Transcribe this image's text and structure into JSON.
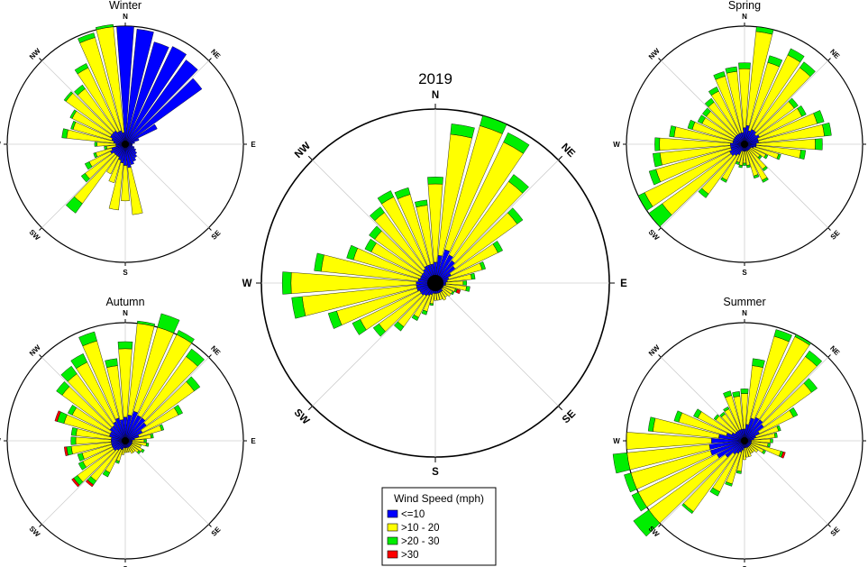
{
  "figure": {
    "panels": [
      {
        "id": "annual",
        "title": "2019",
        "labels": [
          "N",
          "NE",
          "E",
          "SE",
          "S",
          "SW",
          "W",
          "NW"
        ]
      },
      {
        "id": "winter",
        "title": "Winter",
        "labels": [
          "N",
          "NE",
          "E",
          "SE",
          "S",
          "SW",
          "W",
          "NW"
        ]
      },
      {
        "id": "spring",
        "title": "Spring",
        "labels": [
          "N",
          "NE",
          "E",
          "SE",
          "S",
          "SW",
          "W",
          "NW"
        ]
      },
      {
        "id": "autumn",
        "title": "Autumn",
        "labels": [
          "N",
          "NE",
          "E",
          "SE",
          "S",
          "SW",
          "W",
          "NW"
        ]
      },
      {
        "id": "summer",
        "title": "Summer",
        "labels": [
          "N",
          "NE",
          "E",
          "SE",
          "S",
          "SW",
          "W",
          "NW"
        ]
      }
    ],
    "legend": {
      "title": "Wind Speed (mph)",
      "items": [
        {
          "label": "<=10",
          "color": "#0000ff"
        },
        {
          "label": ">10 - 20",
          "color": "#ffff00"
        },
        {
          "label": ">20 - 30",
          "color": "#00ee00"
        },
        {
          "label": ">30",
          "color": "#ff0000"
        }
      ]
    }
  },
  "chart_data": [
    {
      "type": "windrose",
      "panel": "annual",
      "title": "2019",
      "bins": [
        "<=10",
        ">10 - 20",
        ">20 - 30",
        ">30"
      ],
      "colors": [
        "#0000ff",
        "#ffff00",
        "#00ee00",
        "#ff0000"
      ],
      "rmax": 100,
      "directions": [
        0,
        10,
        20,
        30,
        40,
        50,
        60,
        70,
        80,
        90,
        100,
        110,
        120,
        130,
        140,
        150,
        160,
        170,
        180,
        190,
        200,
        210,
        220,
        230,
        240,
        250,
        260,
        270,
        280,
        290,
        300,
        310,
        320,
        330,
        340,
        350
      ],
      "stacked_radius": [
        [
          12,
          45,
          4,
          0
        ],
        [
          16,
          70,
          6,
          0
        ],
        [
          20,
          74,
          8,
          0
        ],
        [
          18,
          72,
          6,
          0
        ],
        [
          16,
          56,
          5,
          0
        ],
        [
          14,
          44,
          4,
          0
        ],
        [
          10,
          30,
          3,
          0
        ],
        [
          8,
          20,
          2,
          0
        ],
        [
          7,
          14,
          2,
          0
        ],
        [
          6,
          10,
          2,
          0
        ],
        [
          6,
          12,
          2,
          0
        ],
        [
          5,
          7,
          1,
          2
        ],
        [
          5,
          6,
          1,
          0
        ],
        [
          5,
          6,
          0,
          0
        ],
        [
          6,
          4,
          0,
          0
        ],
        [
          6,
          5,
          0,
          0
        ],
        [
          6,
          4,
          0,
          0
        ],
        [
          6,
          4,
          0,
          0
        ],
        [
          6,
          4,
          0,
          0
        ],
        [
          6,
          6,
          1,
          0
        ],
        [
          7,
          10,
          2,
          0
        ],
        [
          8,
          14,
          2,
          0
        ],
        [
          9,
          22,
          3,
          0
        ],
        [
          10,
          30,
          4,
          0
        ],
        [
          10,
          38,
          5,
          0
        ],
        [
          11,
          48,
          5,
          0
        ],
        [
          11,
          66,
          6,
          0
        ],
        [
          11,
          72,
          5,
          0
        ],
        [
          10,
          56,
          4,
          0
        ],
        [
          9,
          40,
          4,
          0
        ],
        [
          9,
          32,
          4,
          0
        ],
        [
          9,
          34,
          4,
          0
        ],
        [
          10,
          40,
          4,
          0
        ],
        [
          11,
          44,
          4,
          0
        ],
        [
          11,
          42,
          4,
          0
        ],
        [
          11,
          34,
          3,
          0
        ]
      ]
    },
    {
      "type": "windrose",
      "panel": "winter",
      "title": "Winter",
      "bins": [
        "<=10",
        ">10 - 20",
        ">20 - 30",
        ">30"
      ],
      "colors": [
        "#0000ff",
        "#ffff00",
        "#00ee00",
        "#ff0000"
      ],
      "rmax": 100,
      "directions": [
        0,
        10,
        20,
        30,
        40,
        50,
        60,
        70,
        80,
        90,
        100,
        110,
        120,
        130,
        140,
        150,
        160,
        170,
        180,
        190,
        200,
        210,
        220,
        230,
        240,
        250,
        260,
        270,
        280,
        290,
        300,
        310,
        320,
        330,
        340,
        350
      ],
      "stacked_radius": [
        [
          100,
          0,
          0,
          0
        ],
        [
          98,
          0,
          0,
          0
        ],
        [
          90,
          0,
          0,
          0
        ],
        [
          92,
          0,
          0,
          0
        ],
        [
          88,
          0,
          0,
          0
        ],
        [
          80,
          0,
          0,
          0
        ],
        [
          30,
          0,
          0,
          0
        ],
        [
          12,
          0,
          0,
          0
        ],
        [
          8,
          0,
          0,
          0
        ],
        [
          6,
          0,
          0,
          0
        ],
        [
          6,
          0,
          0,
          0
        ],
        [
          8,
          0,
          0,
          0
        ],
        [
          10,
          0,
          0,
          0
        ],
        [
          12,
          0,
          0,
          0
        ],
        [
          14,
          0,
          0,
          0
        ],
        [
          16,
          0,
          0,
          0
        ],
        [
          18,
          0,
          0,
          0
        ],
        [
          20,
          40,
          0,
          0
        ],
        [
          18,
          30,
          0,
          0
        ],
        [
          16,
          40,
          0,
          0
        ],
        [
          14,
          20,
          0,
          0
        ],
        [
          12,
          16,
          0,
          0
        ],
        [
          12,
          50,
          10,
          0
        ],
        [
          12,
          30,
          4,
          0
        ],
        [
          14,
          20,
          4,
          0
        ],
        [
          12,
          14,
          2,
          0
        ],
        [
          8,
          8,
          2,
          0
        ],
        [
          8,
          16,
          2,
          0
        ],
        [
          10,
          40,
          4,
          0
        ],
        [
          12,
          34,
          2,
          0
        ],
        [
          14,
          36,
          2,
          0
        ],
        [
          14,
          48,
          2,
          0
        ],
        [
          14,
          44,
          4,
          0
        ],
        [
          12,
          60,
          4,
          0
        ],
        [
          12,
          82,
          4,
          0
        ],
        [
          10,
          92,
          8,
          0
        ]
      ]
    },
    {
      "type": "windrose",
      "panel": "spring",
      "title": "Spring",
      "bins": [
        "<=10",
        ">10 - 20",
        ">20 - 30",
        ">30"
      ],
      "colors": [
        "#0000ff",
        "#ffff00",
        "#00ee00",
        "#ff0000"
      ],
      "rmax": 100,
      "directions": [
        0,
        10,
        20,
        30,
        40,
        50,
        60,
        70,
        80,
        90,
        100,
        110,
        120,
        130,
        140,
        150,
        160,
        170,
        180,
        190,
        200,
        210,
        220,
        230,
        240,
        250,
        260,
        270,
        280,
        290,
        300,
        310,
        320,
        330,
        340,
        350
      ],
      "stacked_radius": [
        [
          14,
          50,
          5,
          0
        ],
        [
          16,
          80,
          6,
          0
        ],
        [
          12,
          60,
          6,
          0
        ],
        [
          14,
          70,
          6,
          0
        ],
        [
          14,
          66,
          6,
          0
        ],
        [
          12,
          40,
          4,
          0
        ],
        [
          14,
          40,
          4,
          0
        ],
        [
          12,
          52,
          6,
          0
        ],
        [
          12,
          56,
          6,
          0
        ],
        [
          10,
          50,
          6,
          0
        ],
        [
          10,
          38,
          4,
          0
        ],
        [
          8,
          22,
          2,
          0
        ],
        [
          6,
          14,
          2,
          0
        ],
        [
          6,
          10,
          2,
          0
        ],
        [
          6,
          20,
          2,
          0
        ],
        [
          6,
          28,
          2,
          0
        ],
        [
          6,
          22,
          2,
          0
        ],
        [
          6,
          12,
          2,
          0
        ],
        [
          6,
          10,
          2,
          0
        ],
        [
          6,
          12,
          2,
          0
        ],
        [
          6,
          10,
          2,
          0
        ],
        [
          10,
          24,
          2,
          0
        ],
        [
          12,
          40,
          4,
          0
        ],
        [
          14,
          72,
          14,
          0
        ],
        [
          14,
          80,
          10,
          0
        ],
        [
          12,
          66,
          6,
          0
        ],
        [
          12,
          60,
          6,
          0
        ],
        [
          12,
          60,
          4,
          0
        ],
        [
          10,
          50,
          4,
          0
        ],
        [
          10,
          36,
          4,
          0
        ],
        [
          10,
          30,
          4,
          0
        ],
        [
          10,
          30,
          4,
          0
        ],
        [
          10,
          34,
          4,
          0
        ],
        [
          10,
          40,
          4,
          0
        ],
        [
          10,
          50,
          4,
          0
        ],
        [
          10,
          52,
          4,
          0
        ]
      ]
    },
    {
      "type": "windrose",
      "panel": "autumn",
      "title": "Autumn",
      "bins": [
        "<=10",
        ">10 - 20",
        ">20 - 30",
        ">30"
      ],
      "colors": [
        "#0000ff",
        "#ffff00",
        "#00ee00",
        "#ff0000"
      ],
      "rmax": 100,
      "directions": [
        0,
        10,
        20,
        30,
        40,
        50,
        60,
        70,
        80,
        90,
        100,
        110,
        120,
        130,
        140,
        150,
        160,
        170,
        180,
        190,
        200,
        210,
        220,
        230,
        240,
        250,
        260,
        270,
        280,
        290,
        300,
        310,
        320,
        330,
        340,
        350
      ],
      "stacked_radius": [
        [
          20,
          58,
          6,
          0
        ],
        [
          22,
          80,
          8,
          0
        ],
        [
          26,
          86,
          8,
          0
        ],
        [
          24,
          80,
          8,
          0
        ],
        [
          24,
          64,
          8,
          0
        ],
        [
          22,
          50,
          6,
          0
        ],
        [
          16,
          34,
          4,
          0
        ],
        [
          12,
          20,
          2,
          0
        ],
        [
          8,
          14,
          2,
          0
        ],
        [
          6,
          10,
          2,
          0
        ],
        [
          6,
          12,
          2,
          0
        ],
        [
          6,
          8,
          0,
          0
        ],
        [
          6,
          10,
          2,
          0
        ],
        [
          6,
          8,
          2,
          0
        ],
        [
          6,
          6,
          0,
          0
        ],
        [
          6,
          6,
          0,
          0
        ],
        [
          6,
          4,
          0,
          0
        ],
        [
          6,
          4,
          0,
          0
        ],
        [
          6,
          4,
          0,
          0
        ],
        [
          6,
          6,
          0,
          0
        ],
        [
          8,
          10,
          2,
          0
        ],
        [
          8,
          22,
          4,
          0
        ],
        [
          10,
          32,
          4,
          2
        ],
        [
          12,
          38,
          4,
          2
        ],
        [
          12,
          28,
          4,
          0
        ],
        [
          12,
          26,
          4,
          0
        ],
        [
          12,
          34,
          4,
          2
        ],
        [
          12,
          30,
          4,
          0
        ],
        [
          12,
          30,
          4,
          0
        ],
        [
          14,
          40,
          6,
          2
        ],
        [
          14,
          36,
          4,
          0
        ],
        [
          16,
          50,
          6,
          0
        ],
        [
          16,
          54,
          8,
          0
        ],
        [
          18,
          56,
          8,
          0
        ],
        [
          20,
          68,
          8,
          0
        ],
        [
          18,
          46,
          6,
          0
        ]
      ]
    },
    {
      "type": "windrose",
      "panel": "summer",
      "title": "Summer",
      "bins": [
        "<=10",
        ">10 - 20",
        ">20 - 30",
        ">30"
      ],
      "colors": [
        "#0000ff",
        "#ffff00",
        "#00ee00",
        "#ff0000"
      ],
      "rmax": 100,
      "directions": [
        0,
        10,
        20,
        30,
        40,
        50,
        60,
        70,
        80,
        90,
        100,
        110,
        120,
        130,
        140,
        150,
        160,
        170,
        180,
        190,
        200,
        210,
        220,
        230,
        240,
        250,
        260,
        270,
        280,
        290,
        300,
        310,
        320,
        330,
        340,
        350
      ],
      "stacked_radius": [
        [
          10,
          30,
          4,
          0
        ],
        [
          14,
          50,
          6,
          0
        ],
        [
          20,
          72,
          6,
          0
        ],
        [
          22,
          76,
          6,
          0
        ],
        [
          22,
          66,
          6,
          0
        ],
        [
          20,
          50,
          6,
          0
        ],
        [
          14,
          32,
          4,
          0
        ],
        [
          10,
          20,
          2,
          0
        ],
        [
          8,
          18,
          2,
          0
        ],
        [
          6,
          16,
          2,
          0
        ],
        [
          6,
          14,
          2,
          0
        ],
        [
          6,
          26,
          2,
          2
        ],
        [
          6,
          12,
          2,
          0
        ],
        [
          6,
          8,
          0,
          0
        ],
        [
          6,
          6,
          0,
          0
        ],
        [
          6,
          6,
          0,
          0
        ],
        [
          6,
          8,
          0,
          0
        ],
        [
          6,
          8,
          0,
          0
        ],
        [
          6,
          10,
          0,
          0
        ],
        [
          8,
          18,
          2,
          0
        ],
        [
          10,
          28,
          2,
          0
        ],
        [
          12,
          36,
          4,
          0
        ],
        [
          14,
          60,
          2,
          0
        ],
        [
          20,
          96,
          4,
          0
        ],
        [
          26,
          80,
          4,
          0
        ],
        [
          30,
          76,
          4,
          0
        ],
        [
          30,
          82,
          4,
          0
        ],
        [
          28,
          72,
          4,
          0
        ],
        [
          22,
          56,
          4,
          0
        ],
        [
          16,
          42,
          4,
          0
        ],
        [
          12,
          32,
          4,
          0
        ],
        [
          10,
          20,
          2,
          0
        ],
        [
          10,
          18,
          2,
          0
        ],
        [
          10,
          20,
          2,
          0
        ],
        [
          10,
          30,
          4,
          0
        ],
        [
          10,
          28,
          4,
          0
        ]
      ]
    }
  ]
}
